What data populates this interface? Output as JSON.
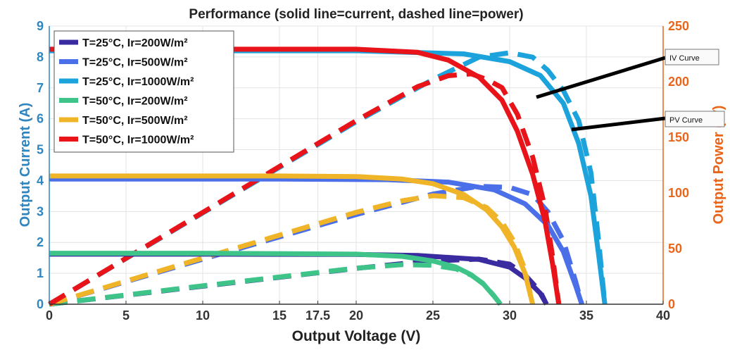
{
  "chart_data": {
    "type": "line",
    "title": "Performance (solid line=current, dashed line=power)",
    "xlabel": "Output Voltage (V)",
    "ylabel_left": "Output Current (A)",
    "ylabel_right": "Output Power (W)",
    "xlim": [
      0,
      40
    ],
    "ylim_left": [
      0,
      9
    ],
    "ylim_right": [
      0,
      250
    ],
    "x_ticks": [
      0,
      5,
      10,
      15,
      17.5,
      20,
      25,
      30,
      35,
      40
    ],
    "y_left_ticks": [
      0,
      1,
      2,
      3,
      4,
      5,
      6,
      7,
      8,
      9
    ],
    "y_right_ticks": [
      0,
      50,
      100,
      150,
      200,
      250
    ],
    "grid": true,
    "legend_position": "top-left",
    "colors": {
      "left_axis": "#2E86C1",
      "right_axis": "#E8651A"
    },
    "series": [
      {
        "name": "T=25°C, Ir=200W/m²",
        "color": "#3A2CA0",
        "current": {
          "x": [
            0,
            10,
            20,
            24,
            28,
            30,
            31,
            32,
            32.4
          ],
          "y": [
            1.62,
            1.62,
            1.61,
            1.58,
            1.45,
            1.2,
            0.85,
            0.35,
            0
          ]
        },
        "power": {
          "x": [
            0,
            10,
            20,
            24,
            26,
            28,
            30,
            31,
            32,
            32.4
          ],
          "y": [
            0,
            16.2,
            32.2,
            37.9,
            39.5,
            40.6,
            36,
            26.4,
            11.2,
            0
          ]
        }
      },
      {
        "name": "T=25°C, Ir=500W/m²",
        "color": "#4A6FE8",
        "current": {
          "x": [
            0,
            15,
            22,
            26,
            29,
            31,
            32.5,
            33.5,
            34.3,
            34.7
          ],
          "y": [
            4.05,
            4.05,
            4.03,
            3.95,
            3.7,
            3.25,
            2.55,
            1.7,
            0.6,
            0
          ]
        },
        "power": {
          "x": [
            0,
            10,
            20,
            25,
            28,
            30,
            31.5,
            32.5,
            33.5,
            34.3,
            34.7
          ],
          "y": [
            0,
            40.5,
            80.6,
            99,
            106,
            105,
            98.5,
            83,
            57,
            20.6,
            0
          ]
        }
      },
      {
        "name": "T=25°C, Ir=1000W/m²",
        "color": "#1CA3DC",
        "current": {
          "x": [
            0,
            20,
            27,
            30,
            32,
            33.5,
            34.5,
            35.3,
            35.8,
            36.2
          ],
          "y": [
            8.2,
            8.2,
            8.1,
            7.85,
            7.4,
            6.5,
            5.2,
            3.5,
            1.6,
            0
          ]
        },
        "power": {
          "x": [
            0,
            10,
            20,
            25,
            28,
            30,
            31.5,
            32.5,
            33.5,
            34.5,
            35.3,
            35.8,
            36.2
          ],
          "y": [
            0,
            82,
            164,
            202,
            222,
            226,
            222,
            210,
            192,
            165,
            118,
            57,
            0
          ]
        }
      },
      {
        "name": "T=50°C, Ir=200W/m²",
        "color": "#3EC488",
        "current": {
          "x": [
            0,
            10,
            20,
            23,
            25,
            26.5,
            27.5,
            28.3,
            29,
            29.4
          ],
          "y": [
            1.65,
            1.65,
            1.62,
            1.55,
            1.4,
            1.2,
            0.95,
            0.65,
            0.25,
            0
          ]
        },
        "power": {
          "x": [
            0,
            10,
            20,
            23,
            25,
            26.5,
            27.5,
            28.3,
            29,
            29.4
          ],
          "y": [
            0,
            16.5,
            32.4,
            35.6,
            35,
            31.8,
            26.1,
            18.4,
            7.2,
            0
          ]
        }
      },
      {
        "name": "T=50°C, Ir=500W/m²",
        "color": "#F0B429",
        "current": {
          "x": [
            0,
            15,
            20,
            23,
            25,
            27,
            28.5,
            29.5,
            30.3,
            31,
            31.5
          ],
          "y": [
            4.15,
            4.15,
            4.13,
            4.05,
            3.9,
            3.55,
            3.05,
            2.5,
            1.85,
            1.0,
            0
          ]
        },
        "power": {
          "x": [
            0,
            10,
            20,
            23,
            25,
            27,
            28.5,
            29.5,
            30.3,
            31,
            31.5
          ],
          "y": [
            0,
            41.5,
            82.6,
            93,
            97.5,
            95.8,
            86.9,
            73.8,
            56,
            31,
            0
          ]
        }
      },
      {
        "name": "T=50°C, Ir=1000W/m²",
        "color": "#E8141A",
        "current": {
          "x": [
            0,
            20,
            24,
            26,
            28,
            29.5,
            30.5,
            31.5,
            32.3,
            32.8,
            33.2
          ],
          "y": [
            8.25,
            8.25,
            8.15,
            7.9,
            7.35,
            6.6,
            5.6,
            4.2,
            2.7,
            1.3,
            0
          ]
        },
        "power": {
          "x": [
            0,
            10,
            20,
            24,
            26,
            27.5,
            28.5,
            29.5,
            30.5,
            31.5,
            32.3,
            32.8,
            33.2
          ],
          "y": [
            0,
            82.5,
            165,
            195.6,
            205.4,
            207,
            202.1,
            194.7,
            170.8,
            132.3,
            87.2,
            42.6,
            0
          ]
        }
      }
    ],
    "annotations": [
      {
        "text": "IV Curve",
        "x": 31.5,
        "y_left": 8.4
      },
      {
        "text": "PV Curve",
        "x": 32.5,
        "y_left": 8.3
      }
    ]
  }
}
